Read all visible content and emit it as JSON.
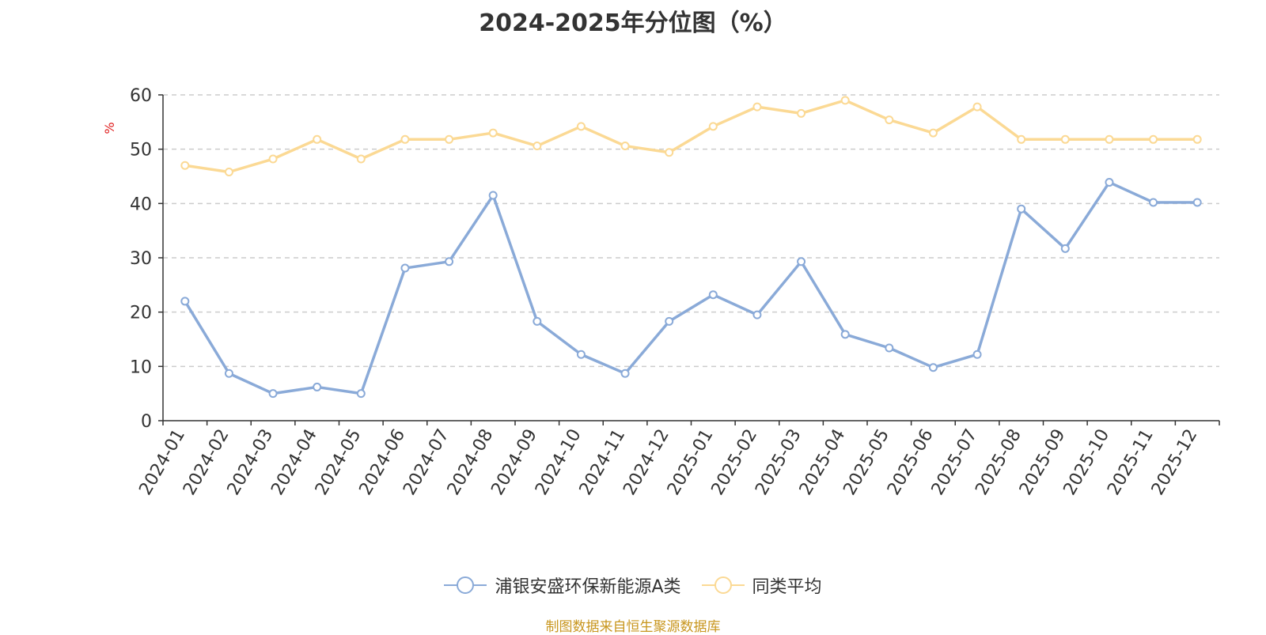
{
  "chart_data": {
    "type": "line",
    "title": "2024-2025年分位图（%）",
    "ylabel": "%",
    "ylim": [
      0,
      60
    ],
    "yticks": [
      0,
      10,
      20,
      30,
      40,
      50,
      60
    ],
    "grid": true,
    "legend_position": "bottom-center",
    "categories": [
      "2024-01",
      "2024-02",
      "2024-03",
      "2024-04",
      "2024-05",
      "2024-06",
      "2024-07",
      "2024-08",
      "2024-09",
      "2024-10",
      "2024-11",
      "2024-12",
      "2025-01",
      "2025-02",
      "2025-03",
      "2025-04",
      "2025-05",
      "2025-06",
      "2025-07",
      "2025-08",
      "2025-09",
      "2025-10",
      "2025-11",
      "2025-12"
    ],
    "series": [
      {
        "name": "浦银安盛环保新能源A类",
        "color": "#8aaad8",
        "values": [
          22.0,
          8.7,
          5.0,
          6.2,
          5.0,
          28.1,
          29.3,
          41.5,
          18.3,
          12.2,
          8.7,
          18.3,
          23.2,
          19.5,
          29.3,
          15.9,
          13.4,
          9.8,
          12.2,
          39.0,
          31.7,
          43.9,
          40.2,
          40.2
        ]
      },
      {
        "name": "同类平均",
        "color": "#fbd994",
        "values": [
          47.0,
          45.8,
          48.2,
          51.8,
          48.2,
          51.8,
          51.8,
          53.0,
          50.6,
          54.2,
          50.6,
          49.4,
          54.2,
          57.8,
          56.6,
          59.0,
          55.4,
          53.0,
          57.8,
          51.8,
          51.8,
          51.8,
          51.8,
          51.8
        ]
      }
    ]
  },
  "source_note": "制图数据来自恒生聚源数据库"
}
